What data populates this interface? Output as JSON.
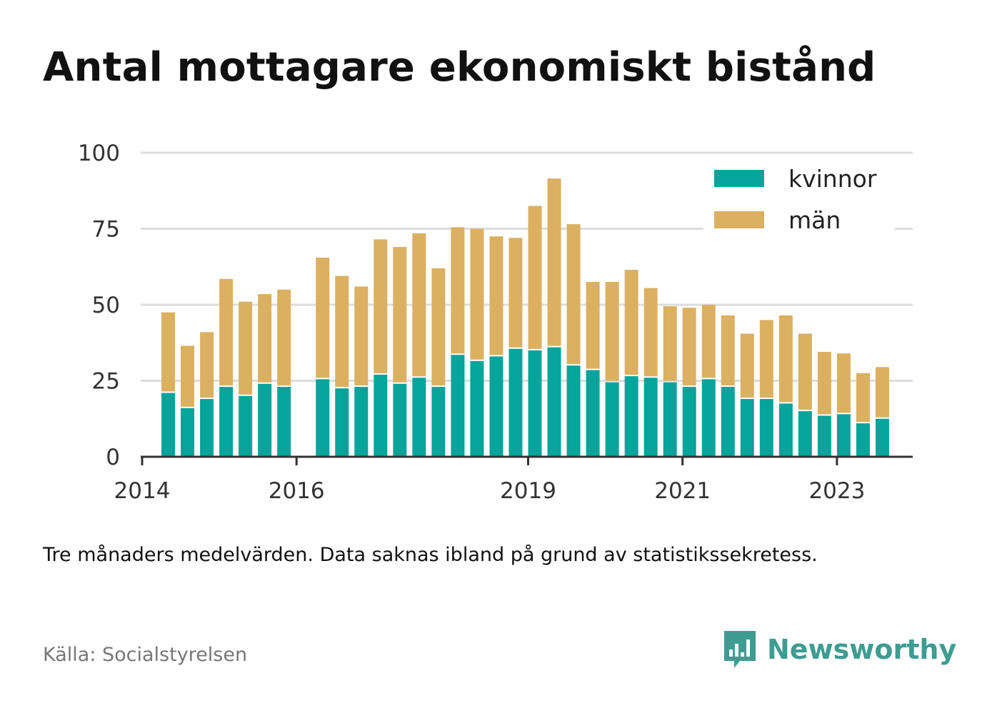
{
  "title": "Antal mottagare ekonomiskt bistånd",
  "note": "Tre månaders medelvärden. Data saknas ibland på grund av statistikssekretess.",
  "source": "Källa: Socialstyrelsen",
  "brand": {
    "name": "Newsworthy",
    "icon": "newsworthy-logo-icon",
    "color": "#3e9c91"
  },
  "colors": {
    "kvinnor": "#06a49a",
    "man": "#dbb061",
    "grid": "#dddddd",
    "axis": "#333333"
  },
  "chart_data": {
    "type": "bar",
    "stacked": true,
    "x_unit": "quarter",
    "x": [
      "2014-Q2",
      "2014-Q3",
      "2014-Q4",
      "2015-Q1",
      "2015-Q2",
      "2015-Q3",
      "2015-Q4",
      "2016-Q1",
      "2016-Q2",
      "2016-Q3",
      "2016-Q4",
      "2017-Q1",
      "2017-Q2",
      "2017-Q3",
      "2017-Q4",
      "2018-Q1",
      "2018-Q2",
      "2018-Q3",
      "2018-Q4",
      "2019-Q1",
      "2019-Q2",
      "2019-Q3",
      "2019-Q4",
      "2020-Q1",
      "2020-Q2",
      "2020-Q3",
      "2020-Q4",
      "2021-Q1",
      "2021-Q2",
      "2021-Q3",
      "2021-Q4",
      "2022-Q1",
      "2022-Q2",
      "2022-Q3",
      "2022-Q4",
      "2023-Q1",
      "2023-Q2",
      "2023-Q3"
    ],
    "series": [
      {
        "name": "kvinnor",
        "color": "#06a49a",
        "values": [
          21,
          16,
          19,
          23,
          20,
          24,
          23,
          null,
          25.5,
          22.5,
          23,
          27,
          24,
          26,
          23,
          33.5,
          31.5,
          33,
          35.5,
          35,
          36,
          30,
          28.5,
          24.5,
          26.5,
          26,
          24.5,
          23,
          25.5,
          23,
          19,
          19,
          17.5,
          15,
          13.5,
          14,
          11,
          12.5
        ]
      },
      {
        "name": "män",
        "color": "#dbb061",
        "values": [
          26.5,
          20.5,
          22,
          35.5,
          31,
          29.5,
          32,
          null,
          40,
          37,
          33,
          44.5,
          45,
          47.5,
          39,
          42,
          43.5,
          39.5,
          36.5,
          47.5,
          55.5,
          46.5,
          29,
          33,
          35,
          29.5,
          25,
          26,
          24.5,
          23.5,
          21.5,
          26,
          29,
          25.5,
          21,
          20,
          16.5,
          17
        ]
      }
    ],
    "xticks": [
      {
        "label": "2014",
        "at": "2014-Q1"
      },
      {
        "label": "2016",
        "at": "2016-Q1"
      },
      {
        "label": "2019",
        "at": "2019-Q1"
      },
      {
        "label": "2021",
        "at": "2021-Q1"
      },
      {
        "label": "2023",
        "at": "2023-Q1"
      }
    ],
    "yticks": [
      0,
      25,
      50,
      75,
      100
    ],
    "ylim": [
      0,
      100
    ],
    "xlim": [
      "2014-Q1",
      "2024-Q1"
    ],
    "grid": true,
    "legend": {
      "placement": "top-right",
      "entries": [
        "kvinnor",
        "män"
      ]
    }
  }
}
